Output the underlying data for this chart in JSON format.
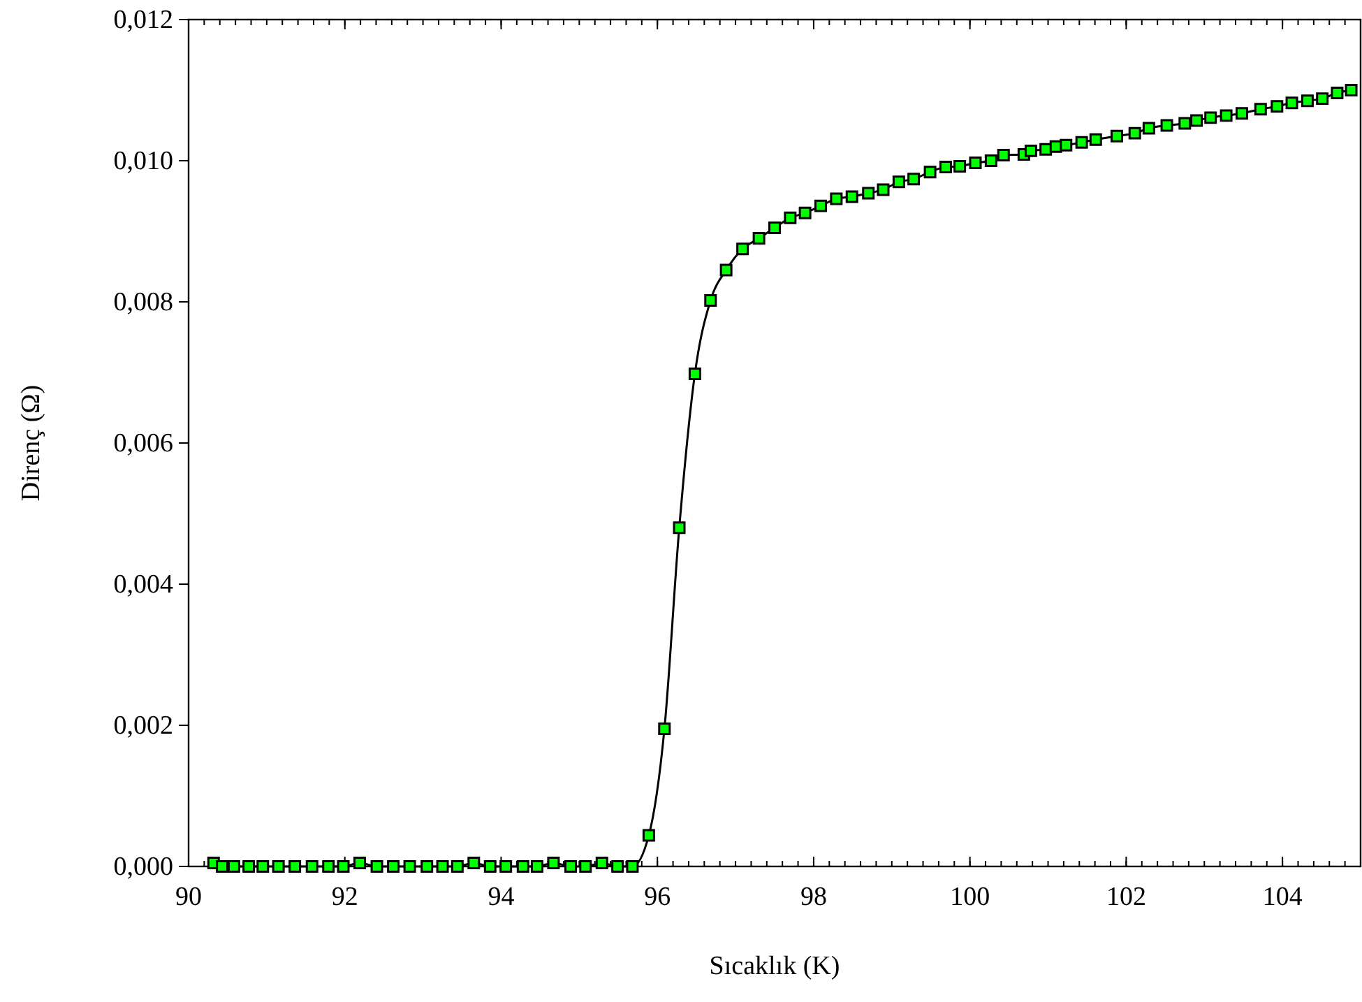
{
  "chart_data": {
    "type": "line",
    "xlabel": "Sıcaklık (K)",
    "ylabel": "Direnç (Ω)",
    "xlim": [
      90,
      105
    ],
    "xticks": [
      90,
      92,
      94,
      96,
      98,
      100,
      102,
      104
    ],
    "ylim": [
      0,
      0.012
    ],
    "yticks": [
      {
        "value": 0,
        "label": "0,000"
      },
      {
        "value": 0.002,
        "label": "0,002"
      },
      {
        "value": 0.004,
        "label": "0,004"
      },
      {
        "value": 0.006,
        "label": "0,006"
      },
      {
        "value": 0.008,
        "label": "0,008"
      },
      {
        "value": 0.01,
        "label": "0,010"
      },
      {
        "value": 0.012,
        "label": "0,012"
      }
    ],
    "marker": "square",
    "line_style": "solid",
    "series": [
      {
        "color": "#00ff00",
        "x": [
          90.32,
          90.43,
          90.58,
          90.77,
          90.95,
          91.15,
          91.36,
          91.58,
          91.79,
          91.98,
          92.19,
          92.41,
          92.62,
          92.83,
          93.05,
          93.25,
          93.44,
          93.65,
          93.86,
          94.06,
          94.28,
          94.46,
          94.67,
          94.89,
          95.08,
          95.29,
          95.49,
          95.68,
          95.89,
          96.09,
          96.28,
          96.48,
          96.68,
          96.88,
          97.09,
          97.3,
          97.5,
          97.7,
          97.89,
          98.09,
          98.29,
          98.49,
          98.7,
          98.89,
          99.09,
          99.28,
          99.49,
          99.69,
          99.87,
          100.07,
          100.27,
          100.43,
          100.69,
          100.78,
          100.97,
          101.1,
          101.23,
          101.43,
          101.61,
          101.88,
          102.11,
          102.29,
          102.52,
          102.75,
          102.9,
          103.08,
          103.28,
          103.48,
          103.72,
          103.93,
          104.12,
          104.32,
          104.51,
          104.7,
          104.88
        ],
        "values": [
          5e-05,
          0,
          0,
          0,
          0,
          0,
          0,
          0,
          0,
          0,
          5e-05,
          0,
          0,
          0,
          0,
          0,
          0,
          5e-05,
          0,
          0,
          0,
          0,
          5e-05,
          0,
          0,
          5e-05,
          0,
          0,
          0.00044,
          0.00195,
          0.0048,
          0.00698,
          0.00802,
          0.00845,
          0.00875,
          0.0089,
          0.00905,
          0.00919,
          0.00926,
          0.00936,
          0.00946,
          0.00949,
          0.00954,
          0.00959,
          0.0097,
          0.00974,
          0.00984,
          0.00991,
          0.00992,
          0.00997,
          0.01,
          0.01008,
          0.01009,
          0.01014,
          0.01016,
          0.0102,
          0.01022,
          0.01026,
          0.0103,
          0.01035,
          0.01039,
          0.01046,
          0.0105,
          0.01053,
          0.01057,
          0.01061,
          0.01064,
          0.01067,
          0.01073,
          0.01077,
          0.01082,
          0.01085,
          0.01088,
          0.01096,
          0.011
        ]
      }
    ]
  }
}
